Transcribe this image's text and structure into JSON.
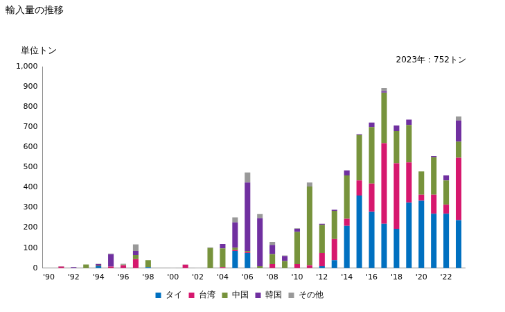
{
  "chart_data": {
    "type": "bar",
    "title": "輸入量の推移",
    "y_label": "単位トン",
    "annotation": "2023年：752トン",
    "stacked": true,
    "grid": false,
    "legend": "bottom",
    "categories": [
      "'90",
      null,
      "'92",
      null,
      "'94",
      null,
      "'96",
      null,
      "'98",
      null,
      "'00",
      null,
      "'02",
      null,
      "'04",
      null,
      "'06",
      null,
      "'08",
      null,
      "'10",
      null,
      "'12",
      null,
      "'14",
      null,
      "'16",
      null,
      "'18",
      null,
      "'20",
      null,
      "'22",
      null
    ],
    "series": [
      {
        "name": "タイ",
        "color": "#0070c0",
        "values": [
          0,
          0,
          0,
          0,
          10,
          0,
          0,
          0,
          5,
          0,
          0,
          0,
          0,
          0,
          0,
          85,
          75,
          0,
          0,
          0,
          0,
          0,
          10,
          40,
          210,
          360,
          280,
          220,
          195,
          325,
          335,
          270,
          270,
          238
        ]
      },
      {
        "name": "台湾",
        "color": "#d6186e",
        "values": [
          0,
          8,
          0,
          0,
          0,
          8,
          15,
          45,
          0,
          0,
          0,
          17,
          0,
          0,
          5,
          5,
          5,
          0,
          20,
          0,
          20,
          15,
          65,
          105,
          35,
          75,
          140,
          400,
          325,
          200,
          30,
          95,
          45,
          310
        ]
      },
      {
        "name": "中国",
        "color": "#77933c",
        "values": [
          0,
          0,
          0,
          18,
          3,
          0,
          2,
          20,
          35,
          0,
          0,
          0,
          0,
          100,
          93,
          12,
          5,
          10,
          50,
          35,
          160,
          390,
          140,
          140,
          215,
          225,
          280,
          250,
          160,
          185,
          115,
          185,
          120,
          80
        ]
      },
      {
        "name": "韓国",
        "color": "#7030a0",
        "values": [
          0,
          0,
          5,
          0,
          7,
          62,
          0,
          20,
          0,
          0,
          0,
          0,
          0,
          0,
          22,
          125,
          340,
          238,
          45,
          25,
          15,
          0,
          5,
          5,
          25,
          5,
          22,
          8,
          28,
          27,
          0,
          6,
          25,
          105
        ]
      },
      {
        "name": "その他",
        "color": "#999999",
        "values": [
          0,
          2,
          0,
          0,
          2,
          2,
          5,
          33,
          0,
          0,
          3,
          1,
          3,
          3,
          0,
          25,
          50,
          20,
          15,
          3,
          3,
          20,
          0,
          0,
          0,
          0,
          0,
          15,
          0,
          0,
          0,
          0,
          0,
          19
        ]
      }
    ],
    "ylim": [
      0,
      1000
    ],
    "yticks": [
      0,
      100,
      200,
      300,
      400,
      500,
      600,
      700,
      800,
      900,
      {
        "value": 1000,
        "label": "1,000"
      }
    ]
  }
}
